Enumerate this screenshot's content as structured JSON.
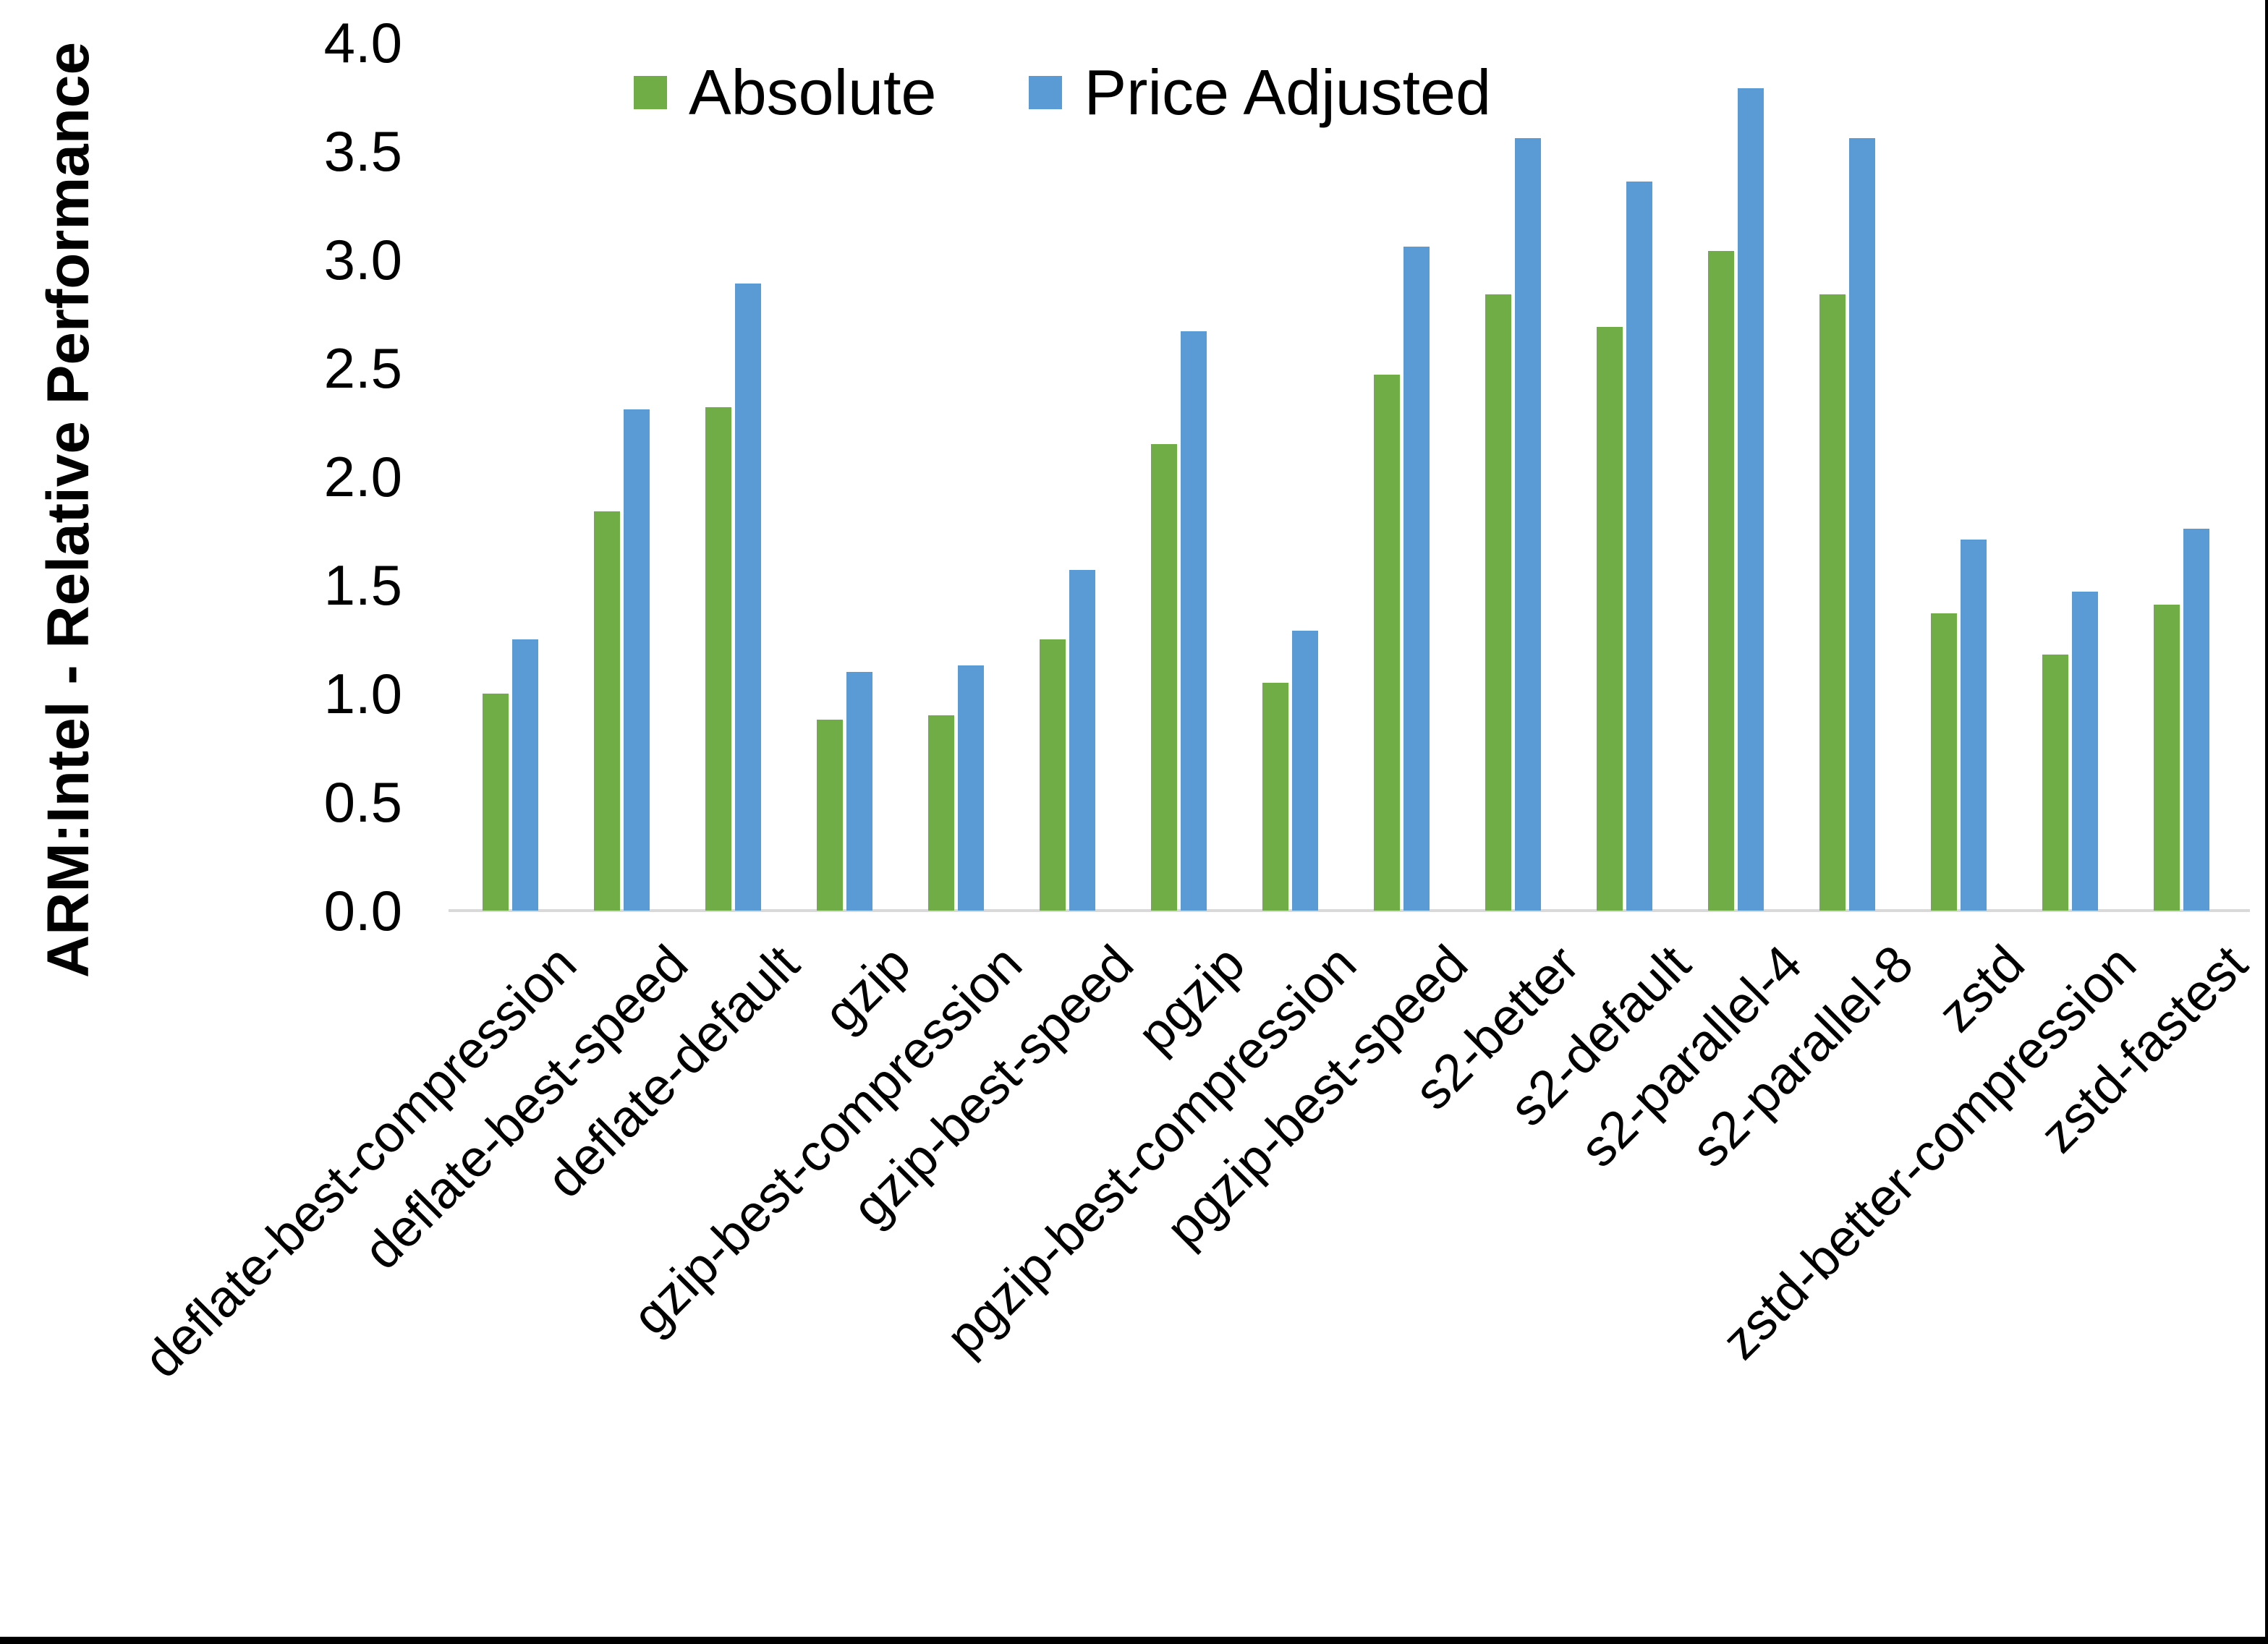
{
  "chart_data": {
    "type": "bar",
    "title": "",
    "ylabel": "ARM:Intel - Relative Performance",
    "xlabel": "",
    "ylim": [
      0.0,
      4.0
    ],
    "ytick_step": 0.5,
    "yticks": [
      "0.0",
      "0.5",
      "1.0",
      "1.5",
      "2.0",
      "2.5",
      "3.0",
      "3.5",
      "4.0"
    ],
    "grid": false,
    "legend_position": "top-center",
    "axis_line_color": "#D9D9D9",
    "categories": [
      "deflate-best-compression",
      "deflate-best-speed",
      "deflate-default",
      "gzip",
      "gzip-best-compression",
      "gzip-best-speed",
      "pgzip",
      "pgzip-best-compression",
      "pgzip-best-speed",
      "s2-better",
      "s2-default",
      "s2-parallel-4",
      "s2-parallel-8",
      "zstd",
      "zstd-better-compression",
      "zstd-fastest"
    ],
    "series": [
      {
        "name": "Absolute",
        "color": "#70AD47",
        "values": [
          1.0,
          1.84,
          2.32,
          0.88,
          0.9,
          1.25,
          2.15,
          1.05,
          2.47,
          2.84,
          2.69,
          3.04,
          2.84,
          1.37,
          1.18,
          1.41
        ]
      },
      {
        "name": "Price Adjusted",
        "color": "#5B9BD5",
        "values": [
          1.25,
          2.31,
          2.89,
          1.1,
          1.13,
          1.57,
          2.67,
          1.29,
          3.06,
          3.56,
          3.36,
          3.79,
          3.56,
          1.71,
          1.47,
          1.76
        ]
      }
    ]
  }
}
